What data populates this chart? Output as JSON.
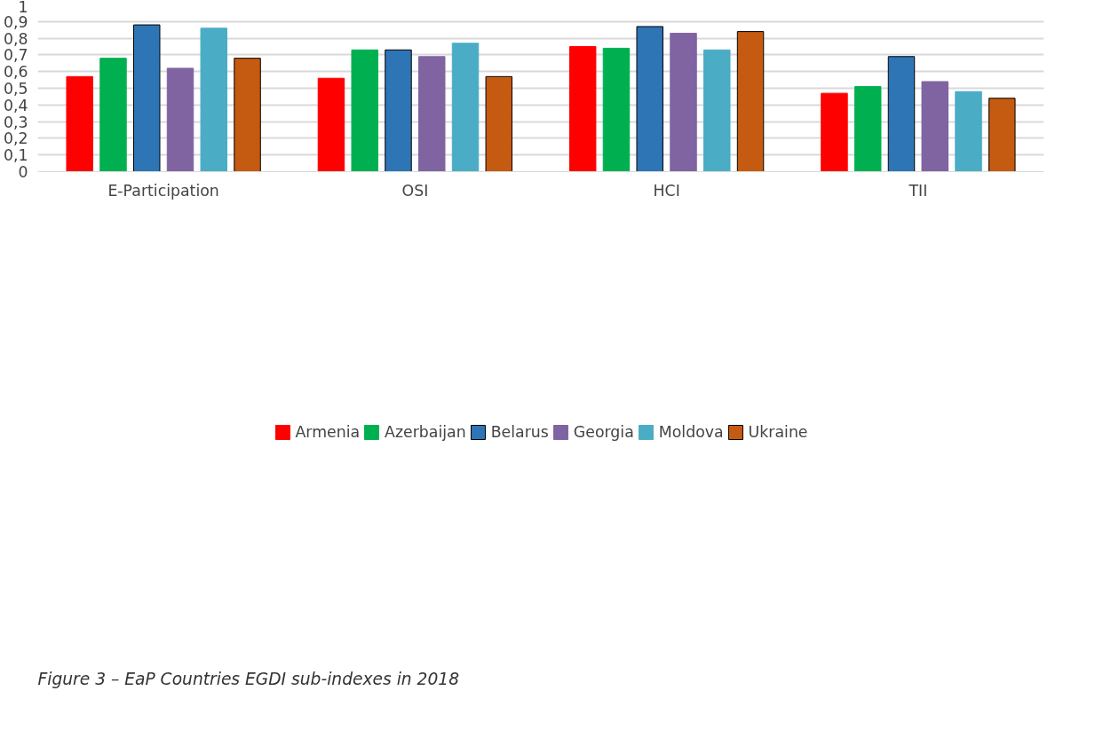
{
  "chart_data": {
    "type": "bar",
    "categories": [
      "E-Participation",
      "OSI",
      "HCI",
      "TII"
    ],
    "series": [
      {
        "name": "Armenia",
        "color": "#ff0000",
        "values": [
          0.57,
          0.56,
          0.75,
          0.47
        ]
      },
      {
        "name": "Azerbaijan",
        "color": "#00b050",
        "values": [
          0.68,
          0.73,
          0.74,
          0.51
        ]
      },
      {
        "name": "Belarus",
        "color": "#2e75b6",
        "values": [
          0.88,
          0.73,
          0.87,
          0.69
        ]
      },
      {
        "name": "Georgia",
        "color": "#8064a2",
        "values": [
          0.62,
          0.69,
          0.83,
          0.54
        ]
      },
      {
        "name": "Moldova",
        "color": "#4bacc6",
        "values": [
          0.86,
          0.77,
          0.73,
          0.48
        ]
      },
      {
        "name": "Ukraine",
        "color": "#c55a11",
        "values": [
          0.68,
          0.57,
          0.84,
          0.44
        ]
      }
    ],
    "ylim": [
      0,
      1
    ],
    "yticks": [
      0,
      {
        "value": 0.1,
        "label": "0,1"
      },
      {
        "value": 0.2,
        "label": "0,2"
      },
      {
        "value": 0.3,
        "label": "0,3"
      },
      {
        "value": 0.4,
        "label": "0,4"
      },
      {
        "value": 0.5,
        "label": "0,5"
      },
      {
        "value": 0.6,
        "label": "0,6"
      },
      {
        "value": 0.7,
        "label": "0,7"
      },
      {
        "value": 0.8,
        "label": "0,8"
      },
      {
        "value": 0.9,
        "label": "0,9"
      },
      1
    ],
    "grid": "y",
    "legend": "bottom",
    "annotations": [
      "Figure 3 – EaP Countries EGDI sub-indexes in 2018"
    ]
  }
}
